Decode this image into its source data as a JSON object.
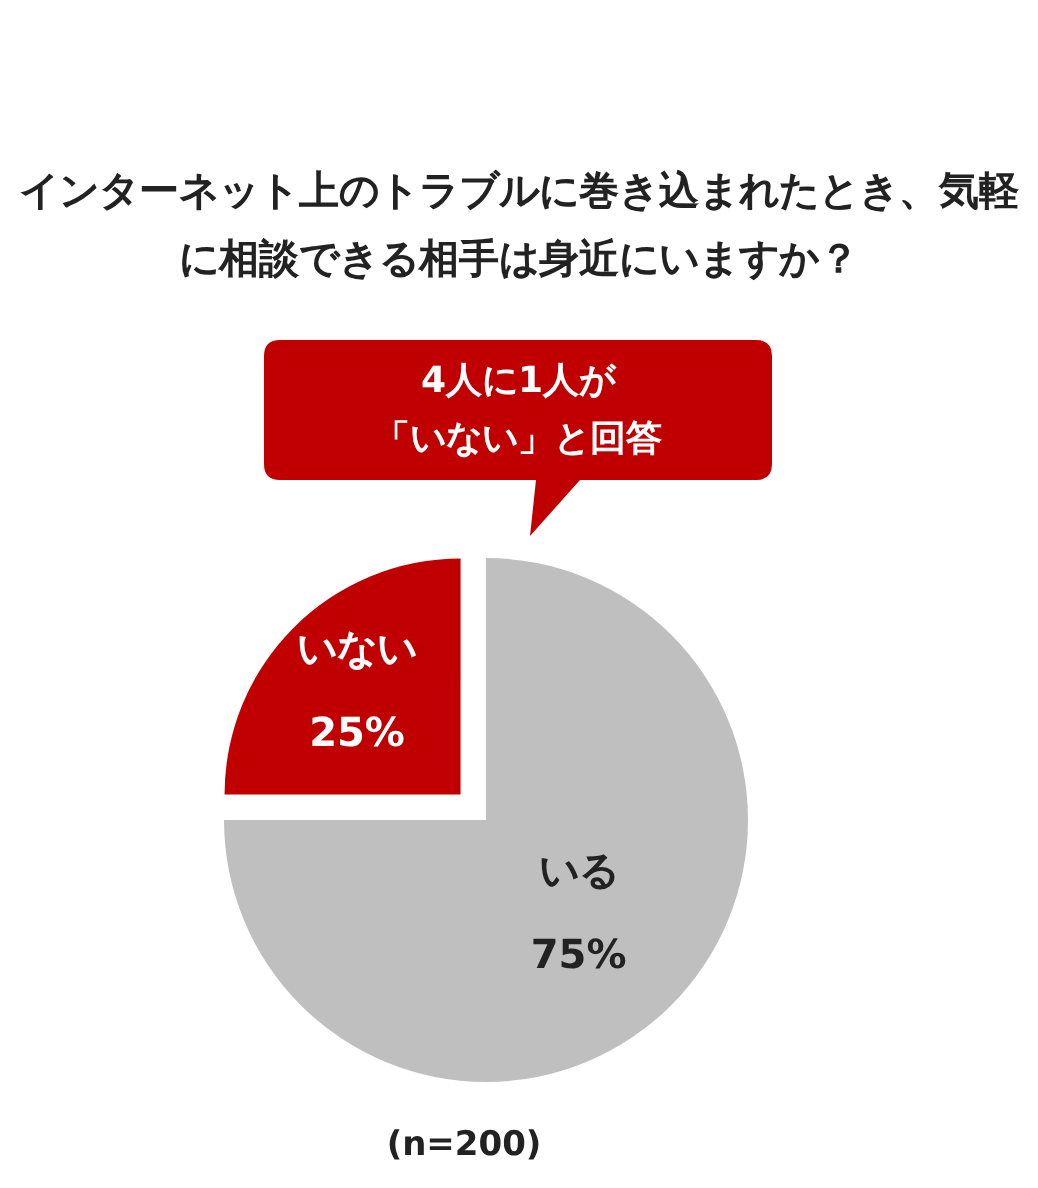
{
  "chart_data": {
    "type": "pie",
    "title": "インターネット上のトラブルに巻き込まれたとき、気軽に相談できる相手は身近にいますか？",
    "categories": [
      "いる",
      "いない"
    ],
    "values": [
      75,
      25
    ],
    "colors": [
      "#bfbfbf",
      "#c00000"
    ],
    "value_labels": [
      "75%",
      "25%"
    ],
    "annotations": [
      "4人に1人が",
      "「いない」と回答",
      "(n=200)"
    ]
  }
}
